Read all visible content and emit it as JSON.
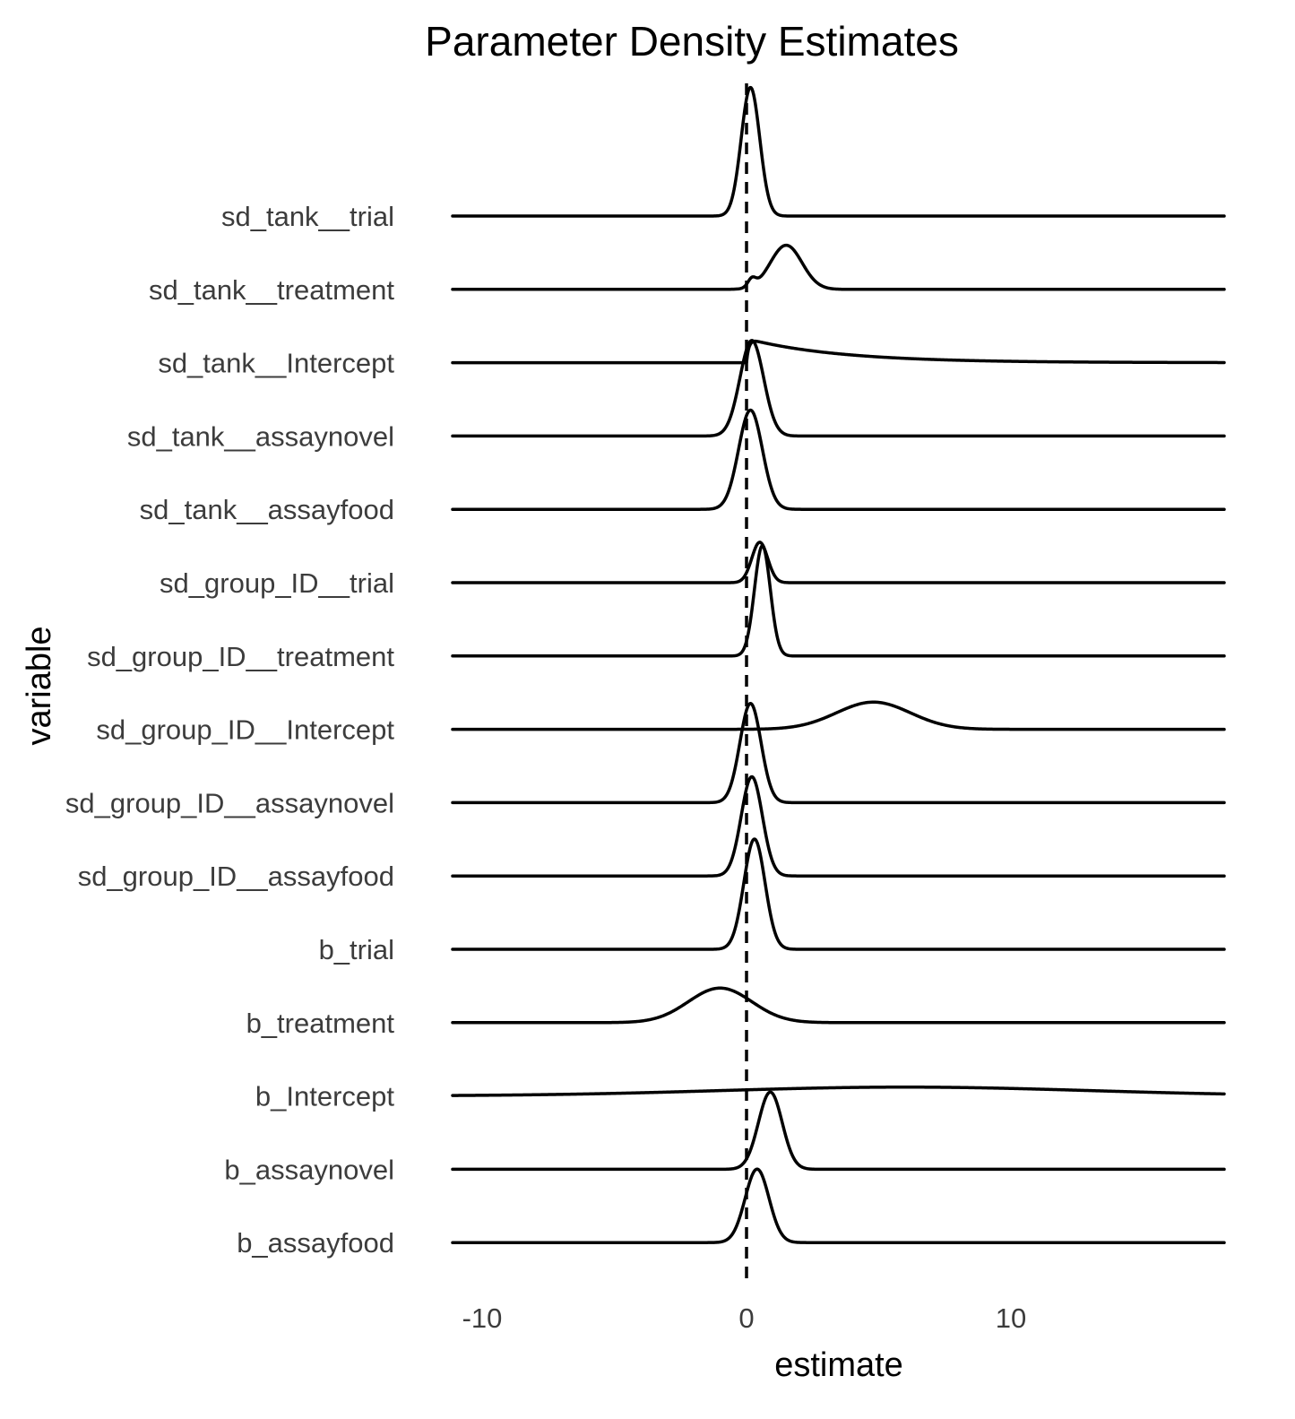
{
  "chart_data": {
    "type": "ridgeline",
    "title": "Parameter Density Estimates",
    "xlabel": "estimate",
    "ylabel": "variable",
    "xlim": [
      -11,
      18
    ],
    "x_ticks": [
      -10,
      0,
      10
    ],
    "x_tick_labels": [
      "-10",
      "0",
      "10"
    ],
    "reference_line": {
      "x": 0,
      "style": "dashed"
    },
    "grid": false,
    "series": [
      {
        "name": "sd_tank__trial",
        "peak": 0.15,
        "sd": 0.35,
        "height": 1.75
      },
      {
        "name": "sd_tank__treatment",
        "peak": 1.5,
        "sd": 0.6,
        "height": 0.6,
        "shoulder": 0.1
      },
      {
        "name": "sd_tank__Intercept",
        "peak": 0.3,
        "tail_to": 14,
        "height": 0.3
      },
      {
        "name": "sd_group_ID__trial",
        "peak": 0.5,
        "sd": 0.3,
        "height": 0.55
      },
      {
        "name": "sd_tank__assaynovel",
        "peak": 0.2,
        "sd": 0.45,
        "height": 1.3
      },
      {
        "name": "sd_tank__assayfood",
        "peak": 0.15,
        "sd": 0.45,
        "height": 1.35
      },
      {
        "name": "sd_group_ID__treatment",
        "peak": 0.6,
        "sd": 0.3,
        "height": 1.5
      },
      {
        "name": "sd_group_ID__Intercept",
        "peak": 4.8,
        "sd": 1.4,
        "height": 0.37
      },
      {
        "name": "sd_group_ID__assaynovel",
        "peak": 0.15,
        "sd": 0.4,
        "height": 1.35
      },
      {
        "name": "sd_group_ID__assayfood",
        "peak": 0.2,
        "sd": 0.4,
        "height": 1.35
      },
      {
        "name": "b_trial",
        "peak": 0.3,
        "sd": 0.4,
        "height": 1.5
      },
      {
        "name": "b_treatment",
        "peak": -1.0,
        "sd": 1.2,
        "height": 0.47
      },
      {
        "name": "b_Intercept",
        "peak": 6.0,
        "sd": 7.0,
        "height": 0.12
      },
      {
        "name": "b_assaynovel",
        "peak": 0.9,
        "sd": 0.45,
        "height": 1.05
      },
      {
        "name": "b_assayfood",
        "peak": 0.4,
        "sd": 0.45,
        "height": 1.0
      }
    ],
    "categories": [
      "sd_tank__trial",
      "sd_tank__treatment",
      "sd_tank__Intercept",
      "sd_tank__assaynovel",
      "sd_tank__assayfood",
      "sd_group_ID__trial",
      "sd_group_ID__treatment",
      "sd_group_ID__Intercept",
      "sd_group_ID__assaynovel",
      "sd_group_ID__assayfood",
      "b_trial",
      "b_treatment",
      "b_Intercept",
      "b_assaynovel",
      "b_assayfood"
    ]
  }
}
